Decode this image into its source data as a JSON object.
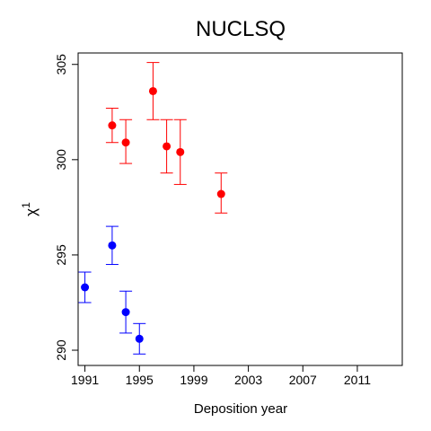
{
  "chart_data": {
    "type": "scatter",
    "title": "NUCLSQ",
    "xlabel": "Deposition year",
    "ylabel": "χ",
    "ylabel_superscript": "1",
    "xlim": [
      1990.5,
      2014.3
    ],
    "ylim": [
      289.2,
      305.6
    ],
    "x_ticks": [
      1991,
      1995,
      1999,
      2003,
      2007,
      2011
    ],
    "x_tick_labels": [
      "1991",
      "1995",
      "1999",
      "2003",
      "2007",
      "2011"
    ],
    "y_ticks": [
      290,
      295,
      300,
      305
    ],
    "y_tick_labels": [
      "290",
      "295",
      "300",
      "305"
    ],
    "grid": false,
    "series": [
      {
        "color": "#ff0000",
        "points": [
          {
            "x": 1993,
            "y": 301.8,
            "low": 300.9,
            "high": 302.7
          },
          {
            "x": 1994,
            "y": 300.9,
            "low": 299.8,
            "high": 302.1
          },
          {
            "x": 1996,
            "y": 303.6,
            "low": 302.1,
            "high": 305.1
          },
          {
            "x": 1997,
            "y": 300.7,
            "low": 299.3,
            "high": 302.1
          },
          {
            "x": 1998,
            "y": 300.4,
            "low": 298.7,
            "high": 302.1
          },
          {
            "x": 2001,
            "y": 298.2,
            "low": 297.2,
            "high": 299.3
          }
        ]
      },
      {
        "color": "#0000ff",
        "points": [
          {
            "x": 1991,
            "y": 293.3,
            "low": 292.5,
            "high": 294.1
          },
          {
            "x": 1993,
            "y": 295.5,
            "low": 294.5,
            "high": 296.5
          },
          {
            "x": 1994,
            "y": 292.0,
            "low": 290.9,
            "high": 293.1
          },
          {
            "x": 1995,
            "y": 290.6,
            "low": 289.8,
            "high": 291.4
          }
        ]
      }
    ]
  }
}
